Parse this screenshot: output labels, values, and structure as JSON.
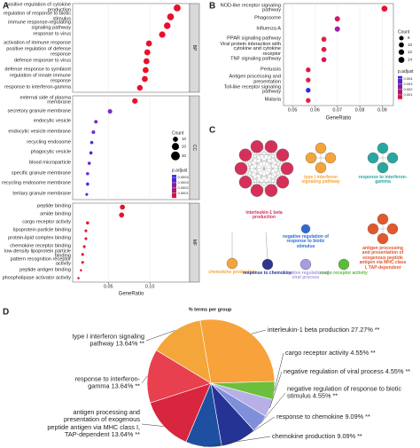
{
  "chart_data": [
    {
      "panel": "A",
      "type": "dot",
      "x_label": "GeneRatio",
      "xlim": [
        0.007,
        0.148
      ],
      "xticks": [
        0.05,
        {
          "value": 0.1,
          "label": "0.10"
        }
      ],
      "facets": [
        {
          "name": "BP",
          "categories": [
            "positive regulation of cytokine production",
            "regulation of response to biotic stimulus",
            "immune response-regulating signaling pathway",
            "response to virus",
            "activation of immune response",
            "positive regulation of defense response",
            "defense response to virus",
            "defense response to symbiont",
            "regulation of innate immune response",
            "response to interferon-gamma"
          ],
          "values": [
            0.133,
            0.125,
            0.121,
            0.115,
            0.099,
            0.097,
            0.096,
            0.095,
            0.094,
            0.088
          ],
          "counts": [
            19,
            18,
            17,
            16,
            14,
            14,
            14,
            14,
            14,
            13
          ],
          "colors": [
            "#e8112d",
            "#e8112d",
            "#e8112d",
            "#e8112d",
            "#e8112d",
            "#e8112d",
            "#e8112d",
            "#e8112d",
            "#e8112d",
            "#e8112d"
          ]
        },
        {
          "name": "CC",
          "categories": [
            "external side of plasma membrane",
            "secretory granule membrane",
            "endocytic vesicle",
            "endocytic vesicle membrane",
            "recycling endosome",
            "phagocytic vesicle",
            "blood microparticle",
            "specific granule membrane",
            "recycling endosome membrane",
            "tertiary granule membrane"
          ],
          "values": [
            0.082,
            0.052,
            0.035,
            0.032,
            0.03,
            0.029,
            0.027,
            0.025,
            0.025,
            0.024
          ],
          "counts": [
            12,
            8,
            5,
            5,
            4,
            4,
            4,
            4,
            4,
            3
          ],
          "colors": [
            "#e8112d",
            "#7a2ccc",
            "#8a2bb8",
            "#6a2ce0",
            "#3f2ee8",
            "#2d2ef0",
            "#5a2ce0",
            "#6a2cdd",
            "#3a2eec",
            "#4a2ce6"
          ]
        },
        {
          "name": "MF",
          "categories": [
            "peptide binding",
            "amide binding",
            "cargo receptor activity",
            "lipoprotein particle binding",
            "protein-lipid complex binding",
            "chemokine receptor binding",
            "low-density lipoprotein particle binding",
            "pattern recognition receptor activity",
            "peptide antigen binding",
            "phospholipase activator activity"
          ],
          "values": [
            0.067,
            0.066,
            0.025,
            0.023,
            0.023,
            0.021,
            0.019,
            0.019,
            0.017,
            0.014
          ],
          "counts": [
            10,
            10,
            4,
            3,
            3,
            3,
            3,
            3,
            2,
            2
          ],
          "colors": [
            "#e8112d",
            "#e8112d",
            "#e8112d",
            "#e8112d",
            "#e8112d",
            "#e8112d",
            "#e8112d",
            "#e8112d",
            "#e8112d",
            "#e8112d"
          ]
        }
      ],
      "size_legend": {
        "title": "Count",
        "values": [
          10,
          20,
          30
        ]
      },
      "color_legend": {
        "title": "p.adjust",
        "clim": [
          1e-05,
          0.00045
        ],
        "ticks": [
          0.0004,
          0.0003,
          0.0002,
          0.0001
        ],
        "colors": [
          "#e8112d",
          "#2d2ef0"
        ]
      }
    },
    {
      "panel": "B",
      "type": "dot",
      "x_label": "GeneRatio",
      "xlim": [
        0.046,
        0.095
      ],
      "xticks": [
        0.05,
        0.06,
        0.07,
        0.08,
        0.09
      ],
      "categories": [
        "NOD-like receptor signaling pathway",
        "Phagosome",
        "Influenza A",
        "PPAR signaling pathway",
        "Viral protein interaction with cytokine and cytokine receptor",
        "TNF signaling pathway",
        "Pertussis",
        "Antigen processing and presentation",
        "Toll-like receptor signaling pathway",
        "Malaria"
      ],
      "values": [
        0.091,
        0.07,
        0.07,
        0.064,
        0.064,
        0.064,
        0.057,
        0.057,
        0.057,
        0.057
      ],
      "counts": [
        14,
        11,
        11,
        10,
        10,
        10,
        9,
        9,
        9,
        9
      ],
      "colors": [
        "#e8102c",
        "#d1196e",
        "#a81ea6",
        "#e8203a",
        "#e41c40",
        "#e01850",
        "#e31644",
        "#e0204a",
        "#2f2fd6",
        "#e8203a"
      ],
      "size_legend": {
        "title": "Count",
        "values": [
          8,
          10,
          12,
          14
        ]
      },
      "color_legend": {
        "title": "p.adjust",
        "clim": [
          0.0002,
          0.0045
        ],
        "ticks": [
          0.004,
          0.003,
          0.002,
          0.001
        ],
        "colors": [
          "#e8112d",
          "#2d2ef0"
        ]
      }
    },
    {
      "panel": "D",
      "type": "pie",
      "title": "% terms per group",
      "labels": [
        "interleukin-1 beta production",
        "cargo receptor activity",
        "negative regulation of viral process",
        "negative regulation of response to biotic stimulus",
        "response to chemokine",
        "chemokine production",
        "antigen processing and presentation of exogenous peptide antigen via MHC class I, TAP-dependent",
        "response to interferon-gamma",
        "type I interferon signaling pathway"
      ],
      "values": [
        27.27,
        4.55,
        4.55,
        4.55,
        9.09,
        9.09,
        13.64,
        13.64,
        13.64
      ],
      "value_labels": [
        "27.27%",
        "4.55%",
        "4.55%",
        "4.55%",
        "9.09%",
        "9.09%",
        "13.64%",
        "13.64%",
        "13.64%"
      ],
      "significance": [
        "**",
        "**",
        "**",
        "**",
        "**",
        "**",
        "**",
        "**",
        "**"
      ],
      "colors": [
        "#f7a23b",
        "#6cbf3c",
        "#b7b0e6",
        "#7f8fd9",
        "#253494",
        "#1e4fa0",
        "#d7263d",
        "#e8404e",
        "#f4a63b"
      ]
    }
  ],
  "network": {
    "panel": "C",
    "groups": [
      {
        "label": "interleukin-1 beta production",
        "color": "#d6305a"
      },
      {
        "label": "type I interferon signaling pathway",
        "color": "#f6a43a"
      },
      {
        "label": "response to interferon-gamma",
        "color": "#2aa6a0"
      },
      {
        "label": "chemokine production",
        "color": "#f6a43a"
      },
      {
        "label": "response to chemokine",
        "color": "#2d3590"
      },
      {
        "label": "negative regulation of response to biotic stimulus",
        "color": "#2e6bd1"
      },
      {
        "label": "negative regulation of viral process",
        "color": "#a99be0"
      },
      {
        "label": "cargo receptor activity",
        "color": "#5bbb3a"
      },
      {
        "label": "antigen processing and presentation of exogenous peptide antigen via MHC class I, TAP-dependent",
        "color": "#e2572d"
      }
    ]
  }
}
